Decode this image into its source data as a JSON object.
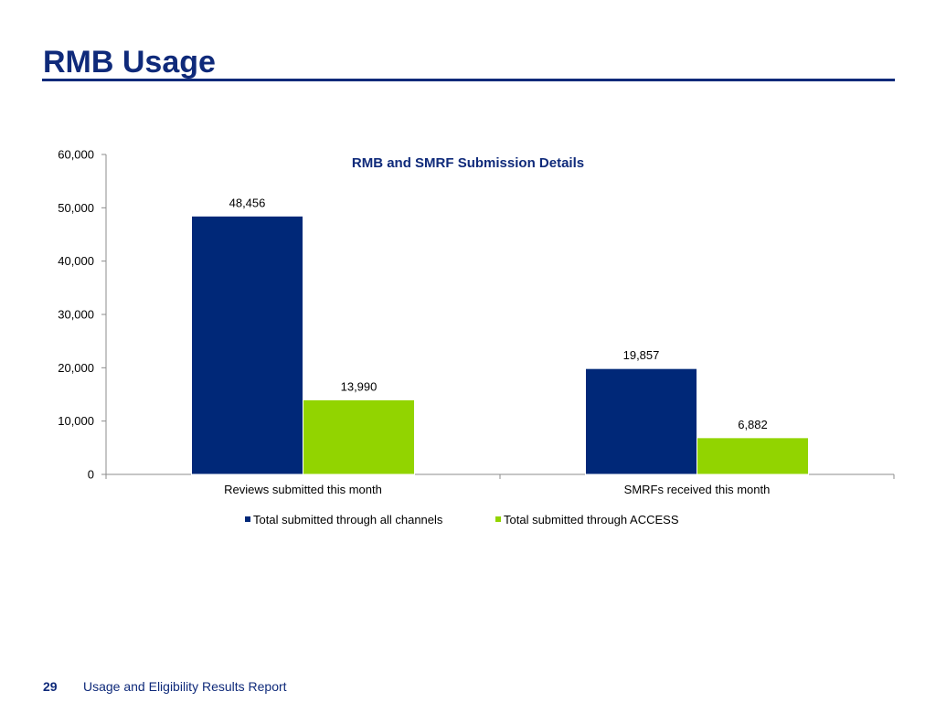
{
  "page": {
    "title": "RMB Usage",
    "footer": {
      "page_number": "29",
      "report_name": "Usage and Eligibility Results Report"
    }
  },
  "colors": {
    "title": "#0f2a7a",
    "series_all_channels": "#002878",
    "series_access": "#92d400",
    "axis": "#8c8c8c"
  },
  "chart_data": {
    "type": "bar",
    "title": "RMB and SMRF Submission Details",
    "xlabel": "",
    "ylabel": "",
    "categories": [
      "Reviews submitted this month",
      "SMRFs received this month"
    ],
    "series": [
      {
        "name": "Total submitted through all channels",
        "values": [
          48456,
          19857
        ],
        "labels": [
          "48,456",
          "19,857"
        ]
      },
      {
        "name": "Total submitted through ACCESS",
        "values": [
          13990,
          6882
        ],
        "labels": [
          "13,990",
          "6,882"
        ]
      }
    ],
    "ylim": [
      0,
      60000
    ],
    "yticks": [
      0,
      10000,
      20000,
      30000,
      40000,
      50000,
      60000
    ],
    "ytick_labels": [
      "0",
      "10,000",
      "20,000",
      "30,000",
      "40,000",
      "50,000",
      "60,000"
    ],
    "grid": false,
    "legend": "bottom"
  }
}
